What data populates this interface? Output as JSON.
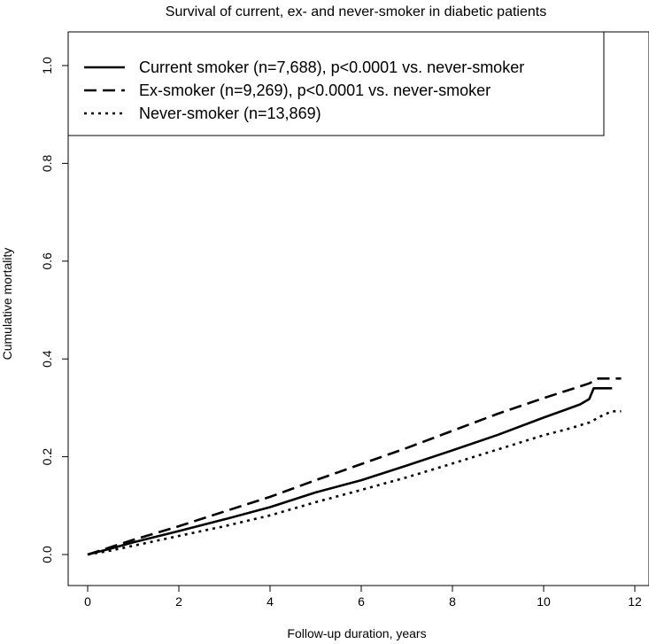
{
  "chart_data": {
    "type": "line",
    "title": "Survival of current, ex- and never-smoker in diabetic patients",
    "xlabel": "Follow-up duration, years",
    "ylabel": "Cumulative mortality",
    "xlim": [
      0,
      12
    ],
    "ylim": [
      0,
      1.0
    ],
    "xticks": [
      "0",
      "2",
      "4",
      "6",
      "8",
      "10",
      "12"
    ],
    "yticks": [
      "0.0",
      "0.2",
      "0.4",
      "0.6",
      "0.8",
      "1.0"
    ],
    "grid": false,
    "legend_position": "top-left",
    "series": [
      {
        "name": "Current smoker (n=7,688), p<0.0001 vs. never-smoker",
        "line_style": "solid",
        "x": [
          0,
          0.5,
          1,
          2,
          3,
          4,
          5,
          6,
          7,
          8,
          9,
          10,
          10.5,
          10.8,
          11.0,
          11.1,
          11.2,
          11.5
        ],
        "y": [
          0,
          0.012,
          0.025,
          0.048,
          0.072,
          0.097,
          0.127,
          0.152,
          0.182,
          0.213,
          0.245,
          0.28,
          0.297,
          0.307,
          0.318,
          0.34,
          0.34,
          0.34
        ]
      },
      {
        "name": "Ex-smoker (n=9,269), p<0.0001 vs. never-smoker",
        "line_style": "dashed",
        "x": [
          0,
          0.5,
          1,
          2,
          3,
          4,
          5,
          6,
          7,
          8,
          9,
          10,
          10.5,
          11.0,
          11.2,
          11.7
        ],
        "y": [
          0,
          0.015,
          0.03,
          0.058,
          0.088,
          0.118,
          0.152,
          0.185,
          0.218,
          0.253,
          0.288,
          0.32,
          0.335,
          0.35,
          0.36,
          0.36
        ]
      },
      {
        "name": "Never-smoker (n=13,869)",
        "line_style": "dotted",
        "x": [
          0,
          0.5,
          1,
          2,
          3,
          4,
          5,
          6,
          7,
          8,
          9,
          10,
          10.5,
          11.0,
          11.3,
          11.5,
          11.7
        ],
        "y": [
          0,
          0.008,
          0.018,
          0.038,
          0.058,
          0.08,
          0.107,
          0.132,
          0.158,
          0.186,
          0.215,
          0.244,
          0.256,
          0.27,
          0.285,
          0.293,
          0.293
        ]
      }
    ]
  }
}
